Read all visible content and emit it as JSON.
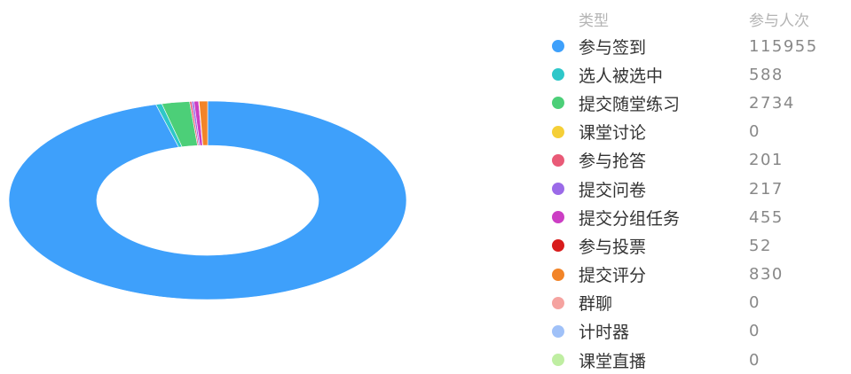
{
  "legend": {
    "type_header": "类型",
    "count_header": "参与人次"
  },
  "chart_data": {
    "type": "pie",
    "variant": "donut",
    "legend_position": "right",
    "categories": [
      "参与签到",
      "选人被选中",
      "提交随堂练习",
      "课堂讨论",
      "参与抢答",
      "提交问卷",
      "提交分组任务",
      "参与投票",
      "提交评分",
      "群聊",
      "计时器",
      "课堂直播"
    ],
    "values": [
      115955,
      588,
      2734,
      0,
      201,
      217,
      455,
      52,
      830,
      0,
      0,
      0
    ],
    "colors": [
      "#3ea0fb",
      "#2ec7c9",
      "#4ccf78",
      "#f5cf37",
      "#e95a77",
      "#9b6ae8",
      "#cc3ec4",
      "#d81c1c",
      "#f28428",
      "#f5a3a0",
      "#a0c1f8",
      "#bfeea2"
    ]
  }
}
